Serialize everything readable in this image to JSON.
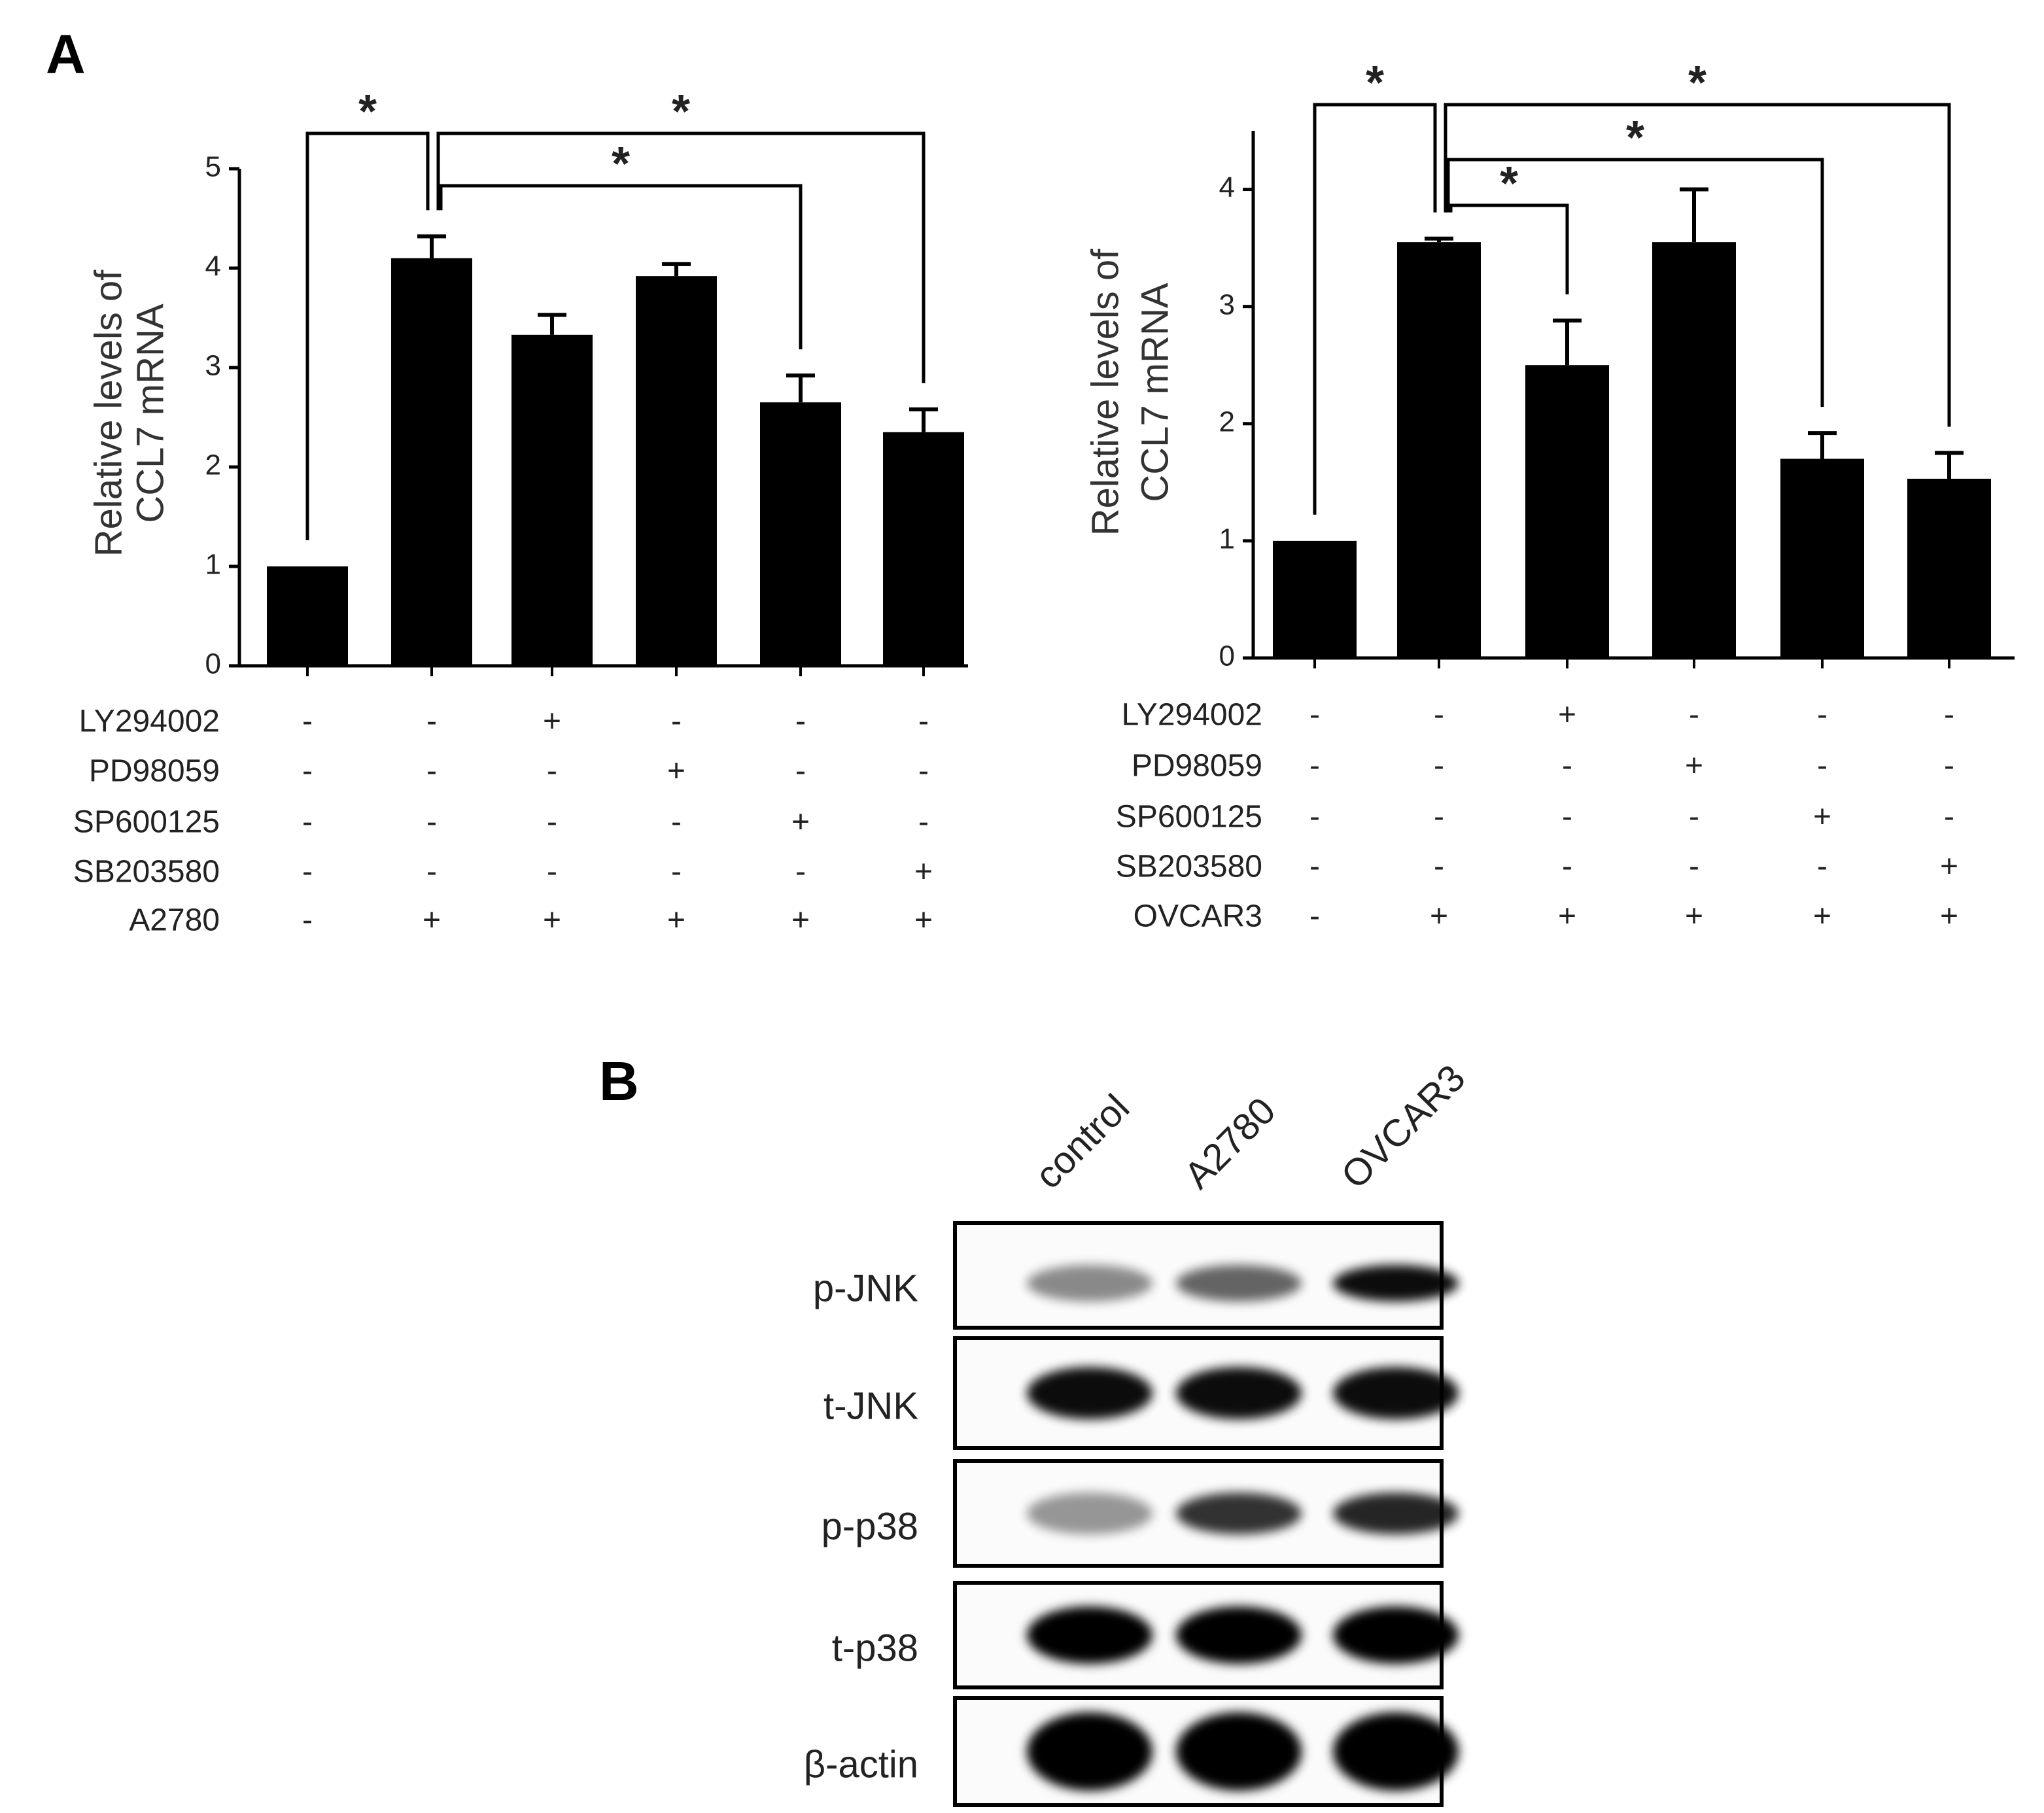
{
  "panel_labels": [
    "A",
    "B"
  ],
  "chart_data": [
    {
      "type": "bar",
      "ylabel": [
        "Relative levels of",
        "CCL7 mRNA"
      ],
      "ylim": [
        0,
        5
      ],
      "yticks": [
        0,
        1,
        2,
        3,
        4,
        5
      ],
      "color": "#000000",
      "values": [
        1,
        4.1,
        3.33,
        3.92,
        2.65,
        2.35
      ],
      "errors": [
        0,
        0.22,
        0.2,
        0.12,
        0.27,
        0.23
      ],
      "treatments": [
        {
          "name": "LY294002",
          "marks": [
            "-",
            "-",
            "+",
            "-",
            "-",
            "-"
          ]
        },
        {
          "name": "PD98059",
          "marks": [
            "-",
            "-",
            "-",
            "+",
            "-",
            "-"
          ]
        },
        {
          "name": "SP600125",
          "marks": [
            "-",
            "-",
            "-",
            "-",
            "+",
            "-"
          ]
        },
        {
          "name": "SB203580",
          "marks": [
            "-",
            "-",
            "-",
            "-",
            "-",
            "+"
          ]
        },
        {
          "name": "A2780",
          "marks": [
            "-",
            "+",
            "+",
            "+",
            "+",
            "+"
          ]
        }
      ],
      "significance": [
        {
          "label": "*",
          "pair": [
            0,
            1
          ]
        },
        {
          "label": "*",
          "pair": [
            1,
            5
          ]
        },
        {
          "label": "*",
          "pair": [
            1,
            4
          ]
        }
      ]
    },
    {
      "type": "bar",
      "ylabel": [
        "Relative levels of",
        "CCL7 mRNA"
      ],
      "ylim": [
        0,
        4.5
      ],
      "yticks": [
        0,
        1,
        2,
        3,
        4
      ],
      "color": "#000000",
      "values": [
        1,
        3.55,
        2.5,
        3.55,
        1.7,
        1.53
      ],
      "errors": [
        0,
        0.03,
        0.38,
        0.45,
        0.22,
        0.22
      ],
      "treatments": [
        {
          "name": "LY294002",
          "marks": [
            "-",
            "-",
            "+",
            "-",
            "-",
            "-"
          ]
        },
        {
          "name": "PD98059",
          "marks": [
            "-",
            "-",
            "-",
            "+",
            "-",
            "-"
          ]
        },
        {
          "name": "SP600125",
          "marks": [
            "-",
            "-",
            "-",
            "-",
            "+",
            "-"
          ]
        },
        {
          "name": "SB203580",
          "marks": [
            "-",
            "-",
            "-",
            "-",
            "-",
            "+"
          ]
        },
        {
          "name": "OVCAR3",
          "marks": [
            "-",
            "+",
            "+",
            "+",
            "+",
            "+"
          ]
        }
      ],
      "significance": [
        {
          "label": "*",
          "pair": [
            0,
            1
          ]
        },
        {
          "label": "*",
          "pair": [
            1,
            5
          ]
        },
        {
          "label": "*",
          "pair": [
            1,
            4
          ]
        },
        {
          "label": "*",
          "pair": [
            1,
            2
          ]
        }
      ]
    }
  ],
  "blot": {
    "lanes": [
      "control",
      "A2780",
      "OVCAR3"
    ],
    "proteins": [
      "p-JNK",
      "t-JNK",
      "p-p38",
      "t-p38",
      "β-actin"
    ]
  }
}
